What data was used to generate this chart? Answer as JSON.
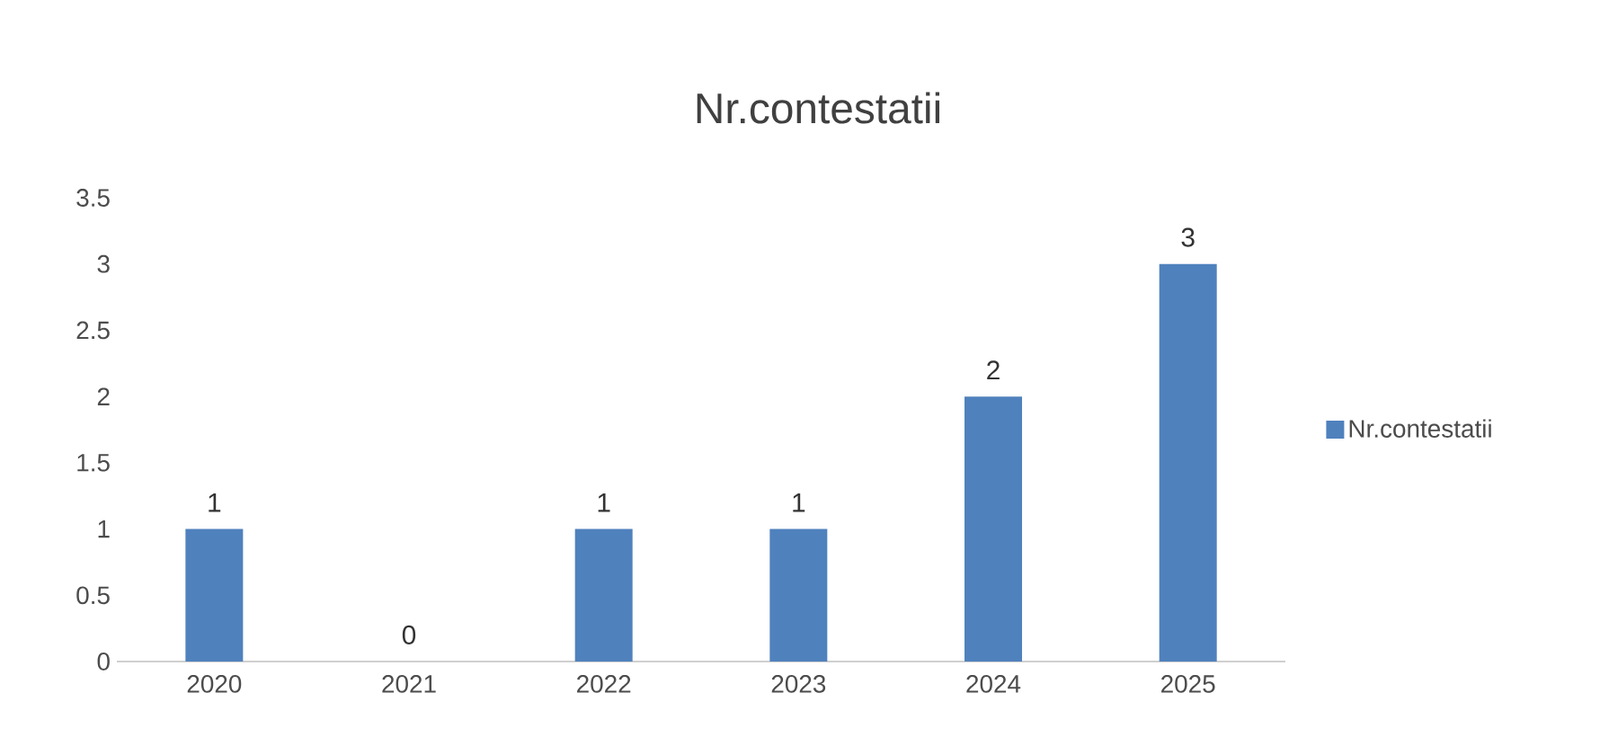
{
  "chart_data": {
    "type": "bar",
    "title": "Nr.contestatii",
    "categories": [
      "2020",
      "2021",
      "2022",
      "2023",
      "2024",
      "2025"
    ],
    "series": [
      {
        "name": "Nr.contestatii",
        "color": "#4f81bd",
        "values": [
          1,
          0,
          1,
          1,
          2,
          3
        ]
      }
    ],
    "ylim": [
      0,
      3.5
    ],
    "yticks": [
      0,
      0.5,
      1,
      1.5,
      2,
      2.5,
      3,
      3.5
    ],
    "data_labels": true,
    "legend": "right",
    "grid": false
  }
}
